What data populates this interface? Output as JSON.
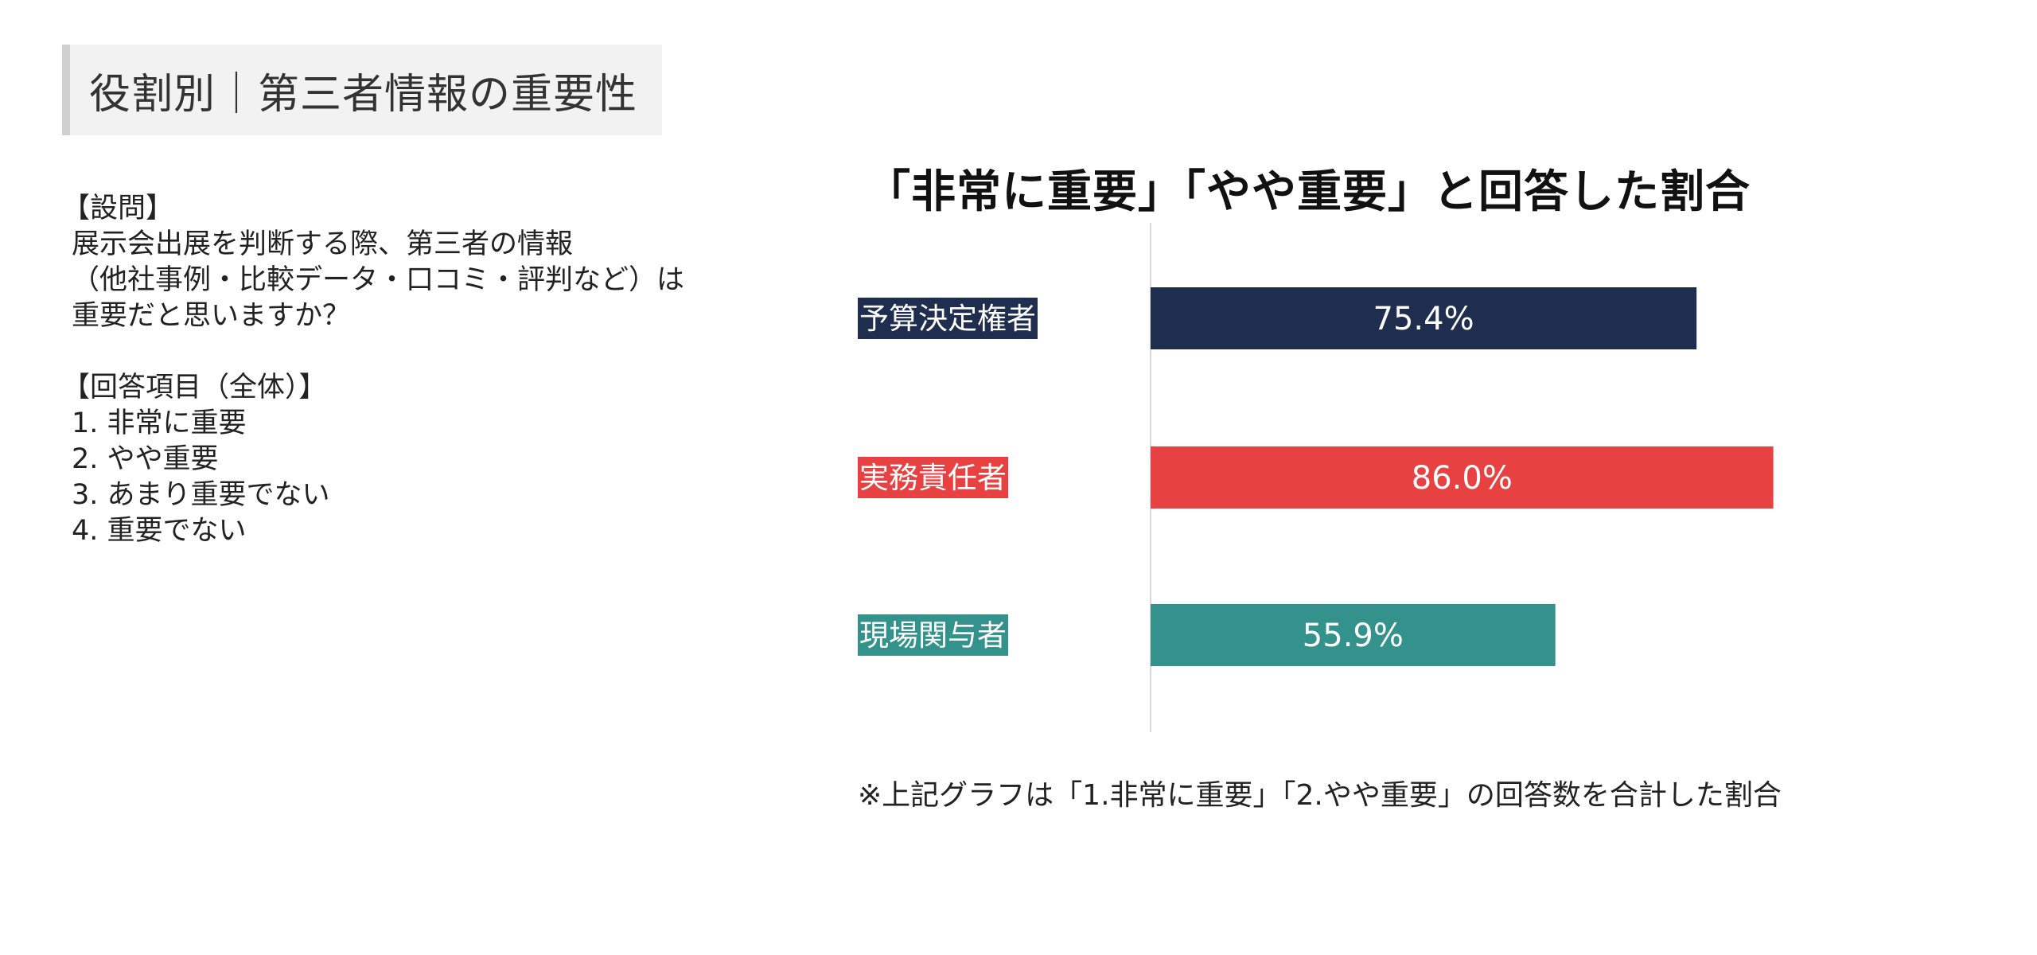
{
  "slide": {
    "title": "役割別｜第三者情報の重要性"
  },
  "question": {
    "heading": "【設問】",
    "lines": [
      "展示会出展を判断する際、第三者の情報",
      "（他社事例・比較データ・口コミ・評判など）は",
      "重要だと思いますか？"
    ],
    "answers_heading": "【回答項目（全体）】",
    "answers": [
      "1. 非常に重要",
      "2. やや重要",
      "3. あまり重要でない",
      "4. 重要でない"
    ]
  },
  "chart_data": {
    "type": "bar",
    "orientation": "horizontal",
    "title": "「非常に重要」「やや重要」と回答した割合",
    "categories": [
      "予算決定権者",
      "実務責任者",
      "現場関与者"
    ],
    "values": [
      75.4,
      86.0,
      55.9
    ],
    "value_labels": [
      "75.4%",
      "86.0%",
      "55.9%"
    ],
    "colors": [
      "#1f2d4e",
      "#e84142",
      "#33928b"
    ],
    "xlim": [
      0,
      100
    ],
    "grid": false,
    "legend": "none"
  },
  "note": "※上記グラフは「1.非常に重要」「2.やや重要」の回答数を合計した割合"
}
